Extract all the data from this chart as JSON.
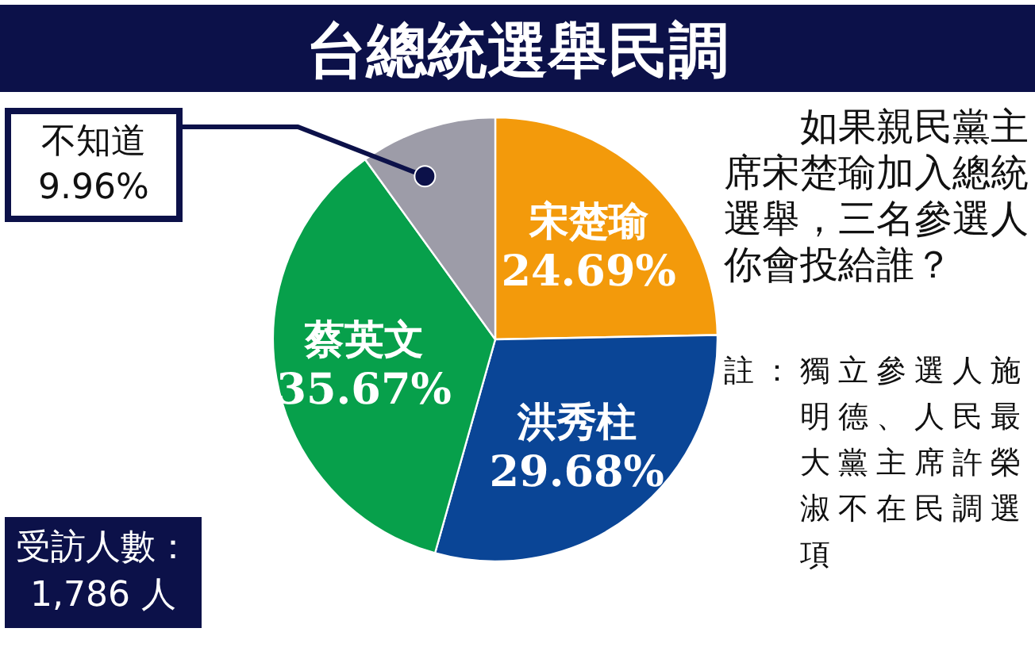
{
  "chart_data": {
    "type": "pie",
    "title": "台總統選舉民調",
    "subtitle": "如果親民黨主席宋楚瑜加入總統選舉，三名參選人你會投給誰？",
    "categories": [
      "宋楚瑜",
      "洪秀柱",
      "蔡英文",
      "不知道"
    ],
    "values": [
      24.69,
      29.68,
      35.67,
      9.96
    ],
    "value_labels": [
      "24.69%",
      "29.68%",
      "35.67%",
      "9.96%"
    ],
    "colors": [
      "#f39a0b",
      "#0a4596",
      "#07a04b",
      "#9d9ca8"
    ],
    "annotations": [
      "註：獨立參選人施明德、人民最大黨主席許榮淑不在民調選項",
      "受訪人數：1,786 人"
    ]
  }
}
